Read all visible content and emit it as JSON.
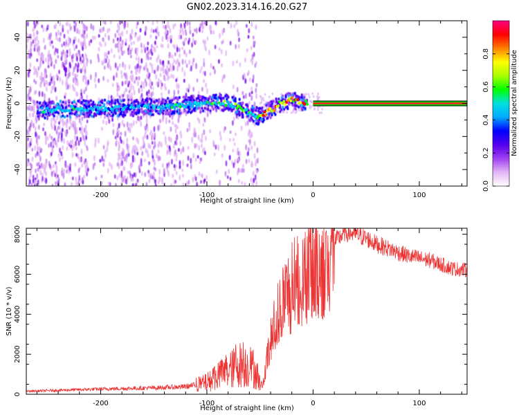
{
  "title": "GN02.2023.314.16.20.G27",
  "chart_data": [
    {
      "type": "heatmap",
      "title": "GN02.2023.314.16.20.G27",
      "xlabel": "Height of straight line (km)",
      "ylabel": "Frequency (Hz)",
      "xlim": [
        -270,
        145
      ],
      "ylim": [
        -50,
        50
      ],
      "x_ticks": [
        "-200",
        "-100",
        "0",
        "100"
      ],
      "y_ticks": [
        "-40",
        "-20",
        "0",
        "20",
        "40"
      ],
      "colorbar": {
        "label": "Normalized spectral amplitude",
        "range": [
          0,
          1
        ],
        "ticks": [
          "0.0",
          "0.2",
          "0.4",
          "0.6",
          "0.8"
        ],
        "colors": [
          "#ffffff",
          "#e3b5f5",
          "#a040f0",
          "#5500ee",
          "#0000ff",
          "#00aaff",
          "#00e0e0",
          "#00ff00",
          "#aaff00",
          "#ffff00",
          "#ff8000",
          "#ff0000",
          "#ff0080"
        ]
      },
      "ridge": {
        "x": [
          -250,
          -220,
          -200,
          -180,
          -160,
          -140,
          -120,
          -100,
          -90,
          -80,
          -70,
          -62,
          -55,
          -50,
          -45,
          -40,
          -35,
          -30,
          -25,
          -20,
          -15,
          -10,
          -5,
          0,
          10,
          50,
          100,
          145
        ],
        "y": [
          -4,
          -3,
          -3,
          -3,
          -2,
          -2,
          -1,
          0,
          1,
          0,
          -2,
          -5,
          -7,
          -8,
          -6,
          -4,
          -2,
          0,
          1,
          2,
          1,
          0,
          0,
          0,
          0,
          0,
          0,
          0
        ]
      },
      "constant_line": {
        "x_start": 0,
        "y": 0
      }
    },
    {
      "type": "line",
      "xlabel": "Height of straight line (km)",
      "ylabel": "SNR (10 * v/v)",
      "xlim": [
        -270,
        145
      ],
      "ylim": [
        0,
        8300
      ],
      "x_ticks": [
        "-200",
        "-100",
        "0",
        "100"
      ],
      "y_ticks": [
        "0",
        "2000",
        "4000",
        "6000",
        "8000"
      ],
      "color": "#ee3333",
      "envelope": {
        "x": [
          -270,
          -240,
          -200,
          -150,
          -120,
          -105,
          -95,
          -85,
          -75,
          -70,
          -62,
          -55,
          -48,
          -45,
          -40,
          -35,
          -30,
          -25,
          -20,
          -15,
          -10,
          -5,
          0,
          10,
          20,
          30,
          40,
          50,
          60,
          70,
          80,
          90,
          100,
          110,
          120,
          130,
          145
        ],
        "y": [
          150,
          200,
          260,
          320,
          380,
          500,
          700,
          1000,
          1300,
          1500,
          1400,
          1200,
          300,
          1300,
          2600,
          3700,
          4500,
          5000,
          5300,
          5800,
          5900,
          6400,
          6400,
          6600,
          7600,
          8100,
          8000,
          7800,
          7500,
          7300,
          7100,
          6900,
          6800,
          6700,
          6500,
          6300,
          6200
        ]
      }
    }
  ]
}
